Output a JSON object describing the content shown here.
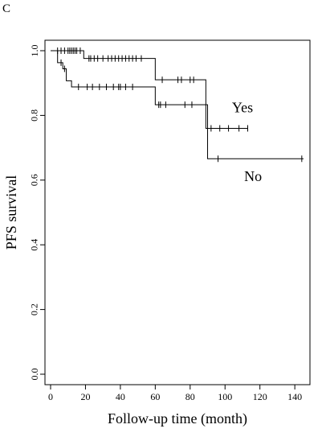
{
  "panel_label": "C",
  "chart_data": {
    "type": "line",
    "subtype": "kaplan-meier",
    "title": "",
    "xlabel": "Follow-up time (month)",
    "ylabel": "PFS survival",
    "xlim": [
      0,
      145
    ],
    "ylim": [
      0,
      1.0
    ],
    "xticks": [
      0,
      20,
      40,
      60,
      80,
      100,
      120,
      140
    ],
    "yticks": [
      0.0,
      0.2,
      0.4,
      0.6,
      0.8,
      1.0
    ],
    "xtick_labels": [
      "0",
      "20",
      "40",
      "60",
      "80",
      "100",
      "120",
      "140"
    ],
    "ytick_labels": [
      "0.0",
      "0.2",
      "0.4",
      "0.6",
      "0.8",
      "1.0"
    ],
    "grid": false,
    "series": [
      {
        "name": "Yes",
        "color": "#000000",
        "steps": [
          {
            "x": 0,
            "y": 1.0
          },
          {
            "x": 19,
            "y": 0.976
          },
          {
            "x": 60,
            "y": 0.91
          },
          {
            "x": 89,
            "y": 0.76
          },
          {
            "x": 113,
            "y": 0.76
          }
        ],
        "censored": [
          {
            "x": 4,
            "y": 1.0
          },
          {
            "x": 6,
            "y": 1.0
          },
          {
            "x": 8,
            "y": 1.0
          },
          {
            "x": 10,
            "y": 1.0
          },
          {
            "x": 11,
            "y": 1.0
          },
          {
            "x": 12,
            "y": 1.0
          },
          {
            "x": 13,
            "y": 1.0
          },
          {
            "x": 14,
            "y": 1.0
          },
          {
            "x": 15,
            "y": 1.0
          },
          {
            "x": 17,
            "y": 1.0
          },
          {
            "x": 22,
            "y": 0.976
          },
          {
            "x": 23,
            "y": 0.976
          },
          {
            "x": 25,
            "y": 0.976
          },
          {
            "x": 27,
            "y": 0.976
          },
          {
            "x": 30,
            "y": 0.976
          },
          {
            "x": 33,
            "y": 0.976
          },
          {
            "x": 35,
            "y": 0.976
          },
          {
            "x": 37,
            "y": 0.976
          },
          {
            "x": 39,
            "y": 0.976
          },
          {
            "x": 41,
            "y": 0.976
          },
          {
            "x": 43,
            "y": 0.976
          },
          {
            "x": 45,
            "y": 0.976
          },
          {
            "x": 47,
            "y": 0.976
          },
          {
            "x": 49,
            "y": 0.976
          },
          {
            "x": 52,
            "y": 0.976
          },
          {
            "x": 64,
            "y": 0.91
          },
          {
            "x": 73,
            "y": 0.91
          },
          {
            "x": 75,
            "y": 0.91
          },
          {
            "x": 80,
            "y": 0.91
          },
          {
            "x": 82,
            "y": 0.91
          },
          {
            "x": 92,
            "y": 0.76
          },
          {
            "x": 97,
            "y": 0.76
          },
          {
            "x": 102,
            "y": 0.76
          },
          {
            "x": 108,
            "y": 0.76
          },
          {
            "x": 113,
            "y": 0.76
          }
        ]
      },
      {
        "name": "No",
        "color": "#000000",
        "steps": [
          {
            "x": 0,
            "y": 1.0
          },
          {
            "x": 4,
            "y": 0.963
          },
          {
            "x": 7,
            "y": 0.944
          },
          {
            "x": 9,
            "y": 0.907
          },
          {
            "x": 12,
            "y": 0.888
          },
          {
            "x": 60,
            "y": 0.833
          },
          {
            "x": 90,
            "y": 0.666
          },
          {
            "x": 145,
            "y": 0.666
          }
        ],
        "censored": [
          {
            "x": 6,
            "y": 0.963
          },
          {
            "x": 8,
            "y": 0.944
          },
          {
            "x": 16,
            "y": 0.888
          },
          {
            "x": 21,
            "y": 0.888
          },
          {
            "x": 24,
            "y": 0.888
          },
          {
            "x": 28,
            "y": 0.888
          },
          {
            "x": 32,
            "y": 0.888
          },
          {
            "x": 36,
            "y": 0.888
          },
          {
            "x": 39,
            "y": 0.888
          },
          {
            "x": 40,
            "y": 0.888
          },
          {
            "x": 43,
            "y": 0.888
          },
          {
            "x": 47,
            "y": 0.888
          },
          {
            "x": 62,
            "y": 0.833
          },
          {
            "x": 63,
            "y": 0.833
          },
          {
            "x": 66,
            "y": 0.833
          },
          {
            "x": 77,
            "y": 0.833
          },
          {
            "x": 81,
            "y": 0.833
          },
          {
            "x": 96,
            "y": 0.666
          },
          {
            "x": 144,
            "y": 0.666
          }
        ]
      }
    ],
    "annotations": [
      {
        "text": "Yes",
        "x": 104,
        "y": 0.81
      },
      {
        "text": "No",
        "x": 111,
        "y": 0.597
      }
    ]
  }
}
